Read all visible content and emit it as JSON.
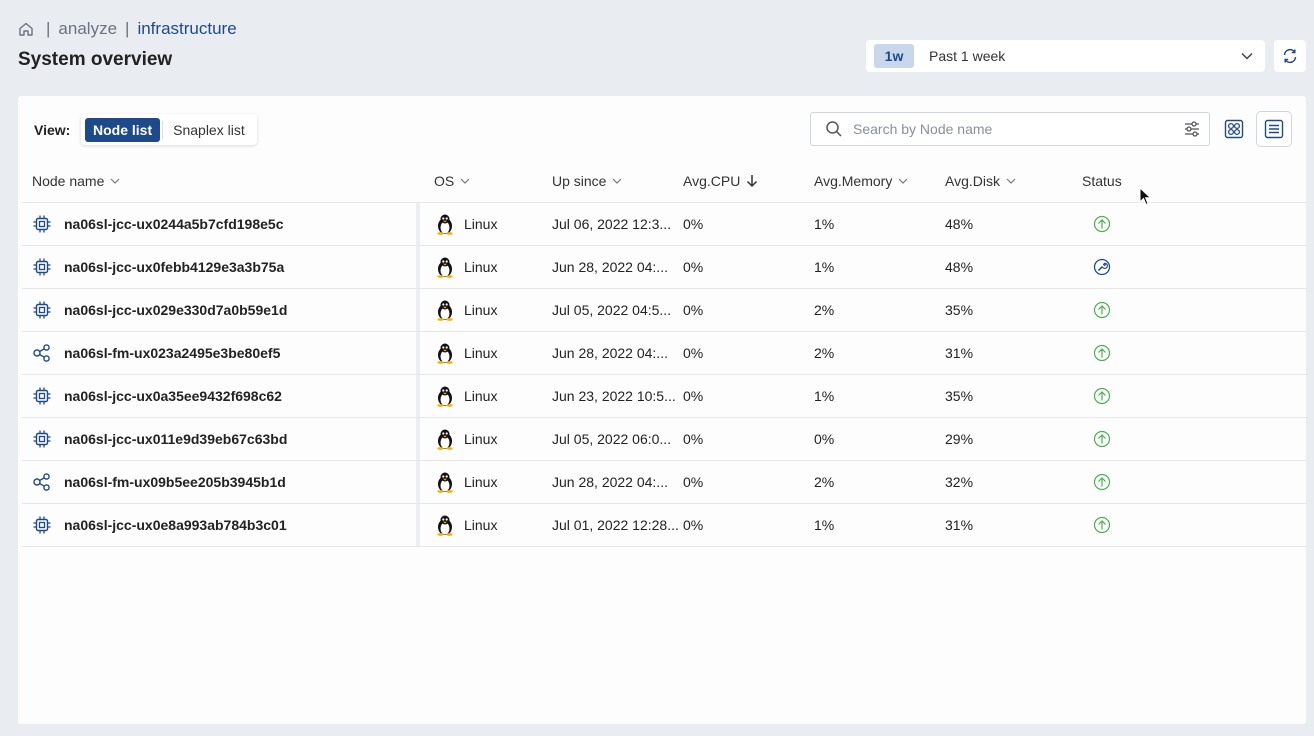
{
  "breadcrumb": {
    "home_icon": "home-icon",
    "items": [
      "analyze",
      "infrastructure"
    ],
    "separator": "|"
  },
  "page_title": "System overview",
  "time_range": {
    "badge": "1w",
    "label": "Past 1 week"
  },
  "view": {
    "label": "View:",
    "options": [
      "Node list",
      "Snaplex list"
    ],
    "active": "Node list"
  },
  "search": {
    "placeholder": "Search by Node name"
  },
  "columns": {
    "name": "Node name",
    "os": "OS",
    "up": "Up since",
    "cpu": "Avg.CPU",
    "mem": "Avg.Memory",
    "disk": "Avg.Disk",
    "status": "Status"
  },
  "rows": [
    {
      "type": "cpu-chip-icon",
      "name": "na06sl-jcc-ux0244a5b7cfd198e5c",
      "os": "Linux",
      "up": "Jul 06, 2022 12:3...",
      "cpu": "0%",
      "mem": "1%",
      "disk": "48%",
      "status": "up"
    },
    {
      "type": "cpu-chip-icon",
      "name": "na06sl-jcc-ux0febb4129e3a3b75a",
      "os": "Linux",
      "up": "Jun 28, 2022 04:...",
      "cpu": "0%",
      "mem": "1%",
      "disk": "48%",
      "status": "maintenance"
    },
    {
      "type": "cpu-chip-icon",
      "name": "na06sl-jcc-ux029e330d7a0b59e1d",
      "os": "Linux",
      "up": "Jul 05, 2022 04:5...",
      "cpu": "0%",
      "mem": "2%",
      "disk": "35%",
      "status": "up"
    },
    {
      "type": "network-nodes-icon",
      "name": "na06sl-fm-ux023a2495e3be80ef5",
      "os": "Linux",
      "up": "Jun 28, 2022 04:...",
      "cpu": "0%",
      "mem": "2%",
      "disk": "31%",
      "status": "up"
    },
    {
      "type": "cpu-chip-icon",
      "name": "na06sl-jcc-ux0a35ee9432f698c62",
      "os": "Linux",
      "up": "Jun 23, 2022 10:5...",
      "cpu": "0%",
      "mem": "1%",
      "disk": "35%",
      "status": "up"
    },
    {
      "type": "cpu-chip-icon",
      "name": "na06sl-jcc-ux011e9d39eb67c63bd",
      "os": "Linux",
      "up": "Jul 05, 2022 06:0...",
      "cpu": "0%",
      "mem": "0%",
      "disk": "29%",
      "status": "up"
    },
    {
      "type": "network-nodes-icon",
      "name": "na06sl-fm-ux09b5ee205b3945b1d",
      "os": "Linux",
      "up": "Jun 28, 2022 04:...",
      "cpu": "0%",
      "mem": "2%",
      "disk": "32%",
      "status": "up"
    },
    {
      "type": "cpu-chip-icon",
      "name": "na06sl-jcc-ux0e8a993ab784b3c01",
      "os": "Linux",
      "up": "Jul 01, 2022 12:28...",
      "cpu": "0%",
      "mem": "1%",
      "disk": "31%",
      "status": "up"
    }
  ],
  "colors": {
    "accent": "#1e4a8c",
    "status_up": "#4caf50",
    "status_maintenance": "#1e4a8c"
  }
}
